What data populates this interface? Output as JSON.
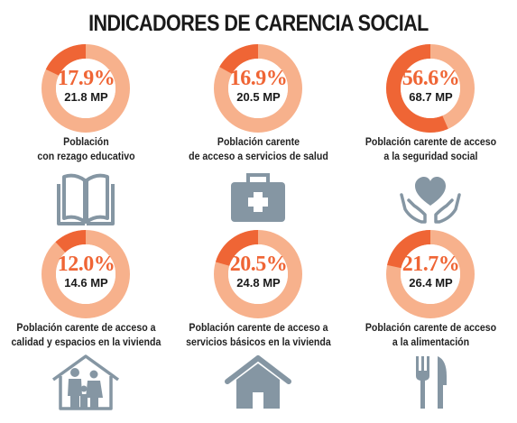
{
  "title": "INDICADORES DE CARENCIA SOCIAL",
  "colors": {
    "highlight": "#ef6535",
    "ring": "#f7b18c",
    "icon": "#8596a3"
  },
  "chart_data": {
    "type": "pie",
    "title": "INDICADORES DE CARENCIA SOCIAL",
    "items": [
      {
        "percent_label": "17.9%",
        "percent": 17.9,
        "count_label": "21.8 MP",
        "label_lines": [
          "Población",
          "con rezago educativo"
        ],
        "icon": "book-icon"
      },
      {
        "percent_label": "16.9%",
        "percent": 16.9,
        "count_label": "20.5 MP",
        "label_lines": [
          "Población carente",
          "de acceso a servicios de salud"
        ],
        "icon": "first-aid-kit-icon"
      },
      {
        "percent_label": "56.6%",
        "percent": 56.6,
        "count_label": "68.7 MP",
        "label_lines": [
          "Población carente de acceso",
          "a la seguridad social"
        ],
        "icon": "hands-heart-icon"
      },
      {
        "percent_label": "12.0%",
        "percent": 12.0,
        "count_label": "14.6 MP",
        "label_lines": [
          "Población carente de acceso a",
          "calidad y espacios en la vivienda"
        ],
        "icon": "family-house-icon"
      },
      {
        "percent_label": "20.5%",
        "percent": 20.5,
        "count_label": "24.8 MP",
        "label_lines": [
          "Población carente de acceso a",
          "servicios básicos en la vivienda"
        ],
        "icon": "house-icon"
      },
      {
        "percent_label": "21.7%",
        "percent": 21.7,
        "count_label": "26.4 MP",
        "label_lines": [
          "Población carente de acceso",
          "a la alimentación"
        ],
        "icon": "fork-knife-icon"
      }
    ]
  }
}
